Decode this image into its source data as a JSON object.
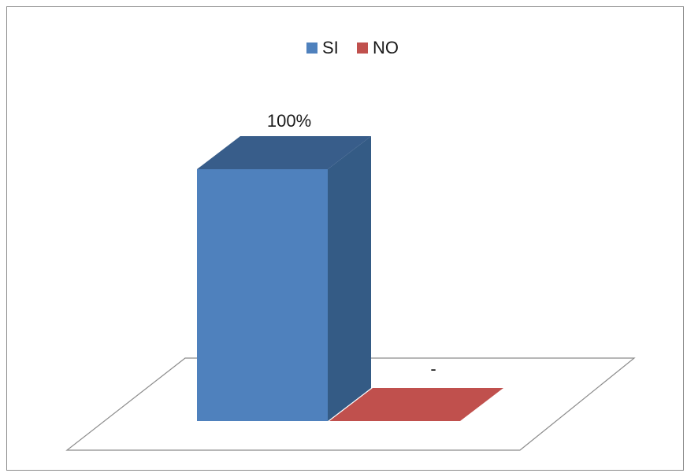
{
  "chart_data": {
    "type": "bar",
    "categories": [
      "SI",
      "NO"
    ],
    "values": [
      100,
      0
    ],
    "data_labels": [
      "100%",
      "-"
    ],
    "ylim": [
      0,
      100
    ],
    "legend": {
      "placement": "top-center",
      "entries": [
        {
          "name": "SI",
          "color": "#4f81bd"
        },
        {
          "name": "NO",
          "color": "#c0504d"
        }
      ]
    },
    "series_colors": {
      "SI": {
        "front": "#4f81bd",
        "side": "#345b85",
        "top": "#385d8a"
      },
      "NO": {
        "front": "#c0504d",
        "side": "#7a3331",
        "top": "#943634"
      }
    },
    "floor_color": "#ffffff",
    "three_d": true
  }
}
